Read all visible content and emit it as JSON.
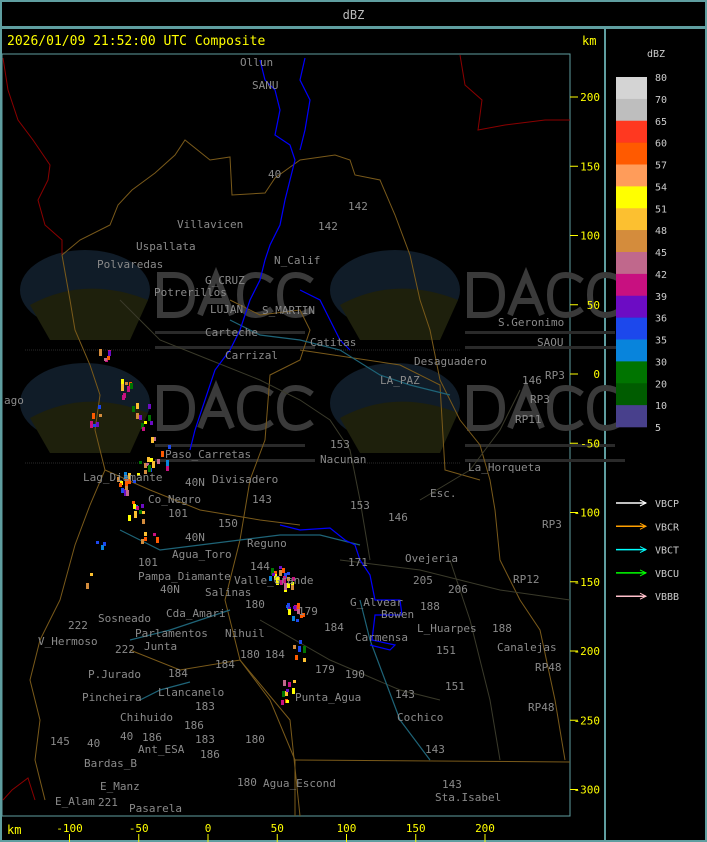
{
  "header": {
    "title": "dBZ"
  },
  "map": {
    "timestamp": "2026/01/09 21:52:00 UTC Composite",
    "unit_top": "km",
    "unit_bottom": "km",
    "x_ticks": [
      -100,
      -50,
      0,
      50,
      100,
      150,
      200
    ],
    "y_ticks": [
      200,
      150,
      100,
      50,
      0,
      -50,
      -100,
      -150,
      -200,
      -250,
      -300
    ],
    "watermark": {
      "brand": "DACC",
      "line1": "Dirección de Agricultura",
      "line2": "y Contingencias Climáticas",
      "url": "http://www.contingencias.mendoza.gov.ar"
    },
    "labels": [
      "Ollun",
      "SANU",
      "40",
      "142",
      "142",
      "Villavicen",
      "Uspallata",
      "Polvaredas",
      "N_Calif",
      "Potrerillos",
      "G_CRUZ",
      "LUJAN",
      "S_MARTIN",
      "Carteche",
      "Carrizal",
      "Catitas",
      "Desaguadero",
      "S.Geronimo",
      "SAOU",
      "LA_PAZ",
      "RP3",
      "146",
      "RP3",
      "RP11",
      "153",
      "Nacunan",
      "La_Horqueta",
      "Esc.",
      "ago",
      "Paso_Carretas",
      "Lag_Diamante",
      "Co_Negro",
      "Divisadero",
      "40N",
      "101",
      "143",
      "150",
      "40N",
      "Agua_Toro",
      "Reguno",
      "153",
      "146",
      "171",
      "Pampa_Diamante",
      "101",
      "Valle_Grande",
      "144",
      "Ovejeria",
      "205",
      "206",
      "RP3",
      "RP12",
      "40N",
      "Salinas",
      "180",
      "Cda_Amari",
      "Parlamentos",
      "Sosneado",
      "Nihuil",
      "179",
      "G_Alvear",
      "Bowen",
      "188",
      "L_Huarpes",
      "184",
      "Carmensa",
      "151",
      "188",
      "Canalejas",
      "V_Hermoso",
      "222",
      "222",
      "Junta",
      "180",
      "184",
      "184",
      "184",
      "P.Jurado",
      "Pincheira",
      "Llancanelo",
      "183",
      "179",
      "190",
      "Punta_Agua",
      "151",
      "RP48",
      "RP48",
      "Chihuido",
      "186",
      "186",
      "40",
      "Ant_ESA",
      "183",
      "143",
      "Cochico",
      "145",
      "Bardas_B",
      "180",
      "186",
      "143",
      "E_Manz",
      "40",
      "221",
      "E_Alam",
      "Pasarela",
      "180",
      "Agua_Escond",
      "143",
      "Sta.Isabel"
    ]
  },
  "legend": {
    "title": "dBZ",
    "scale": [
      {
        "label": "80",
        "color": "#d4d4d4"
      },
      {
        "label": "70",
        "color": "#bebebe"
      },
      {
        "label": "65",
        "color": "#ff3820"
      },
      {
        "label": "60",
        "color": "#ff5a00"
      },
      {
        "label": "57",
        "color": "#ff9c5a"
      },
      {
        "label": "54",
        "color": "#ffff00"
      },
      {
        "label": "51",
        "color": "#fcc030"
      },
      {
        "label": "48",
        "color": "#d48c3c"
      },
      {
        "label": "45",
        "color": "#c0688c"
      },
      {
        "label": "42",
        "color": "#c81080"
      },
      {
        "label": "39",
        "color": "#6c0cc4"
      },
      {
        "label": "36",
        "color": "#1c48ec"
      },
      {
        "label": "35",
        "color": "#0884dc"
      },
      {
        "label": "30",
        "color": "#007400"
      },
      {
        "label": "20",
        "color": "#005c00"
      },
      {
        "label": "10",
        "color": "#48408c"
      }
    ],
    "bottom_label": "5",
    "tracks": [
      {
        "label": "VBCP",
        "color": "#ffffff"
      },
      {
        "label": "VBCR",
        "color": "#ffa000"
      },
      {
        "label": "VBCT",
        "color": "#00ffff"
      },
      {
        "label": "VBCU",
        "color": "#00ff00"
      },
      {
        "label": "VBBB",
        "color": "#ffc0cb"
      }
    ]
  }
}
